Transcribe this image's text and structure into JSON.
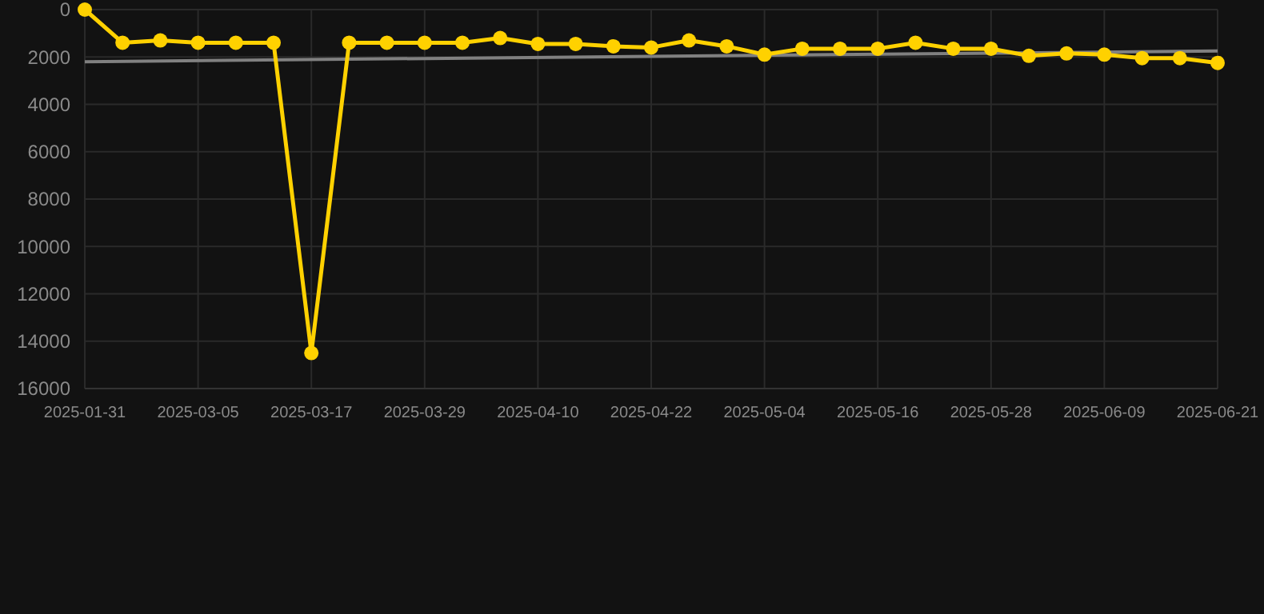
{
  "chart_data": {
    "type": "line",
    "categories": [
      "2025-01-31",
      null,
      null,
      "2025-03-05",
      null,
      null,
      "2025-03-17",
      null,
      null,
      "2025-03-29",
      null,
      null,
      "2025-04-10",
      null,
      null,
      "2025-04-22",
      null,
      null,
      "2025-05-04",
      null,
      null,
      "2025-05-16",
      null,
      null,
      "2025-05-28",
      null,
      null,
      "2025-06-09",
      null,
      null,
      "2025-06-21"
    ],
    "series": [
      {
        "color": "#ffd100",
        "marker": "circle",
        "values": [
          0,
          1400,
          1300,
          1400,
          1400,
          1400,
          14500,
          1400,
          1400,
          1400,
          1400,
          1200,
          1450,
          1450,
          1550,
          1600,
          1300,
          1550,
          1900,
          1650,
          1650,
          1650,
          1400,
          1650,
          1650,
          1950,
          1850,
          1900,
          2050,
          2050,
          2250
        ]
      },
      {
        "type": "line",
        "color": "#808080",
        "marker": "none",
        "values": [
          2200,
          null,
          null,
          null,
          null,
          null,
          null,
          null,
          null,
          null,
          null,
          null,
          null,
          null,
          null,
          null,
          null,
          null,
          null,
          null,
          null,
          null,
          null,
          null,
          null,
          null,
          null,
          null,
          null,
          null,
          1750
        ]
      }
    ],
    "ylim": [
      16000,
      0
    ],
    "yticks": [
      0,
      2000,
      4000,
      6000,
      8000,
      10000,
      12000,
      14000,
      16000
    ],
    "grid": true
  }
}
